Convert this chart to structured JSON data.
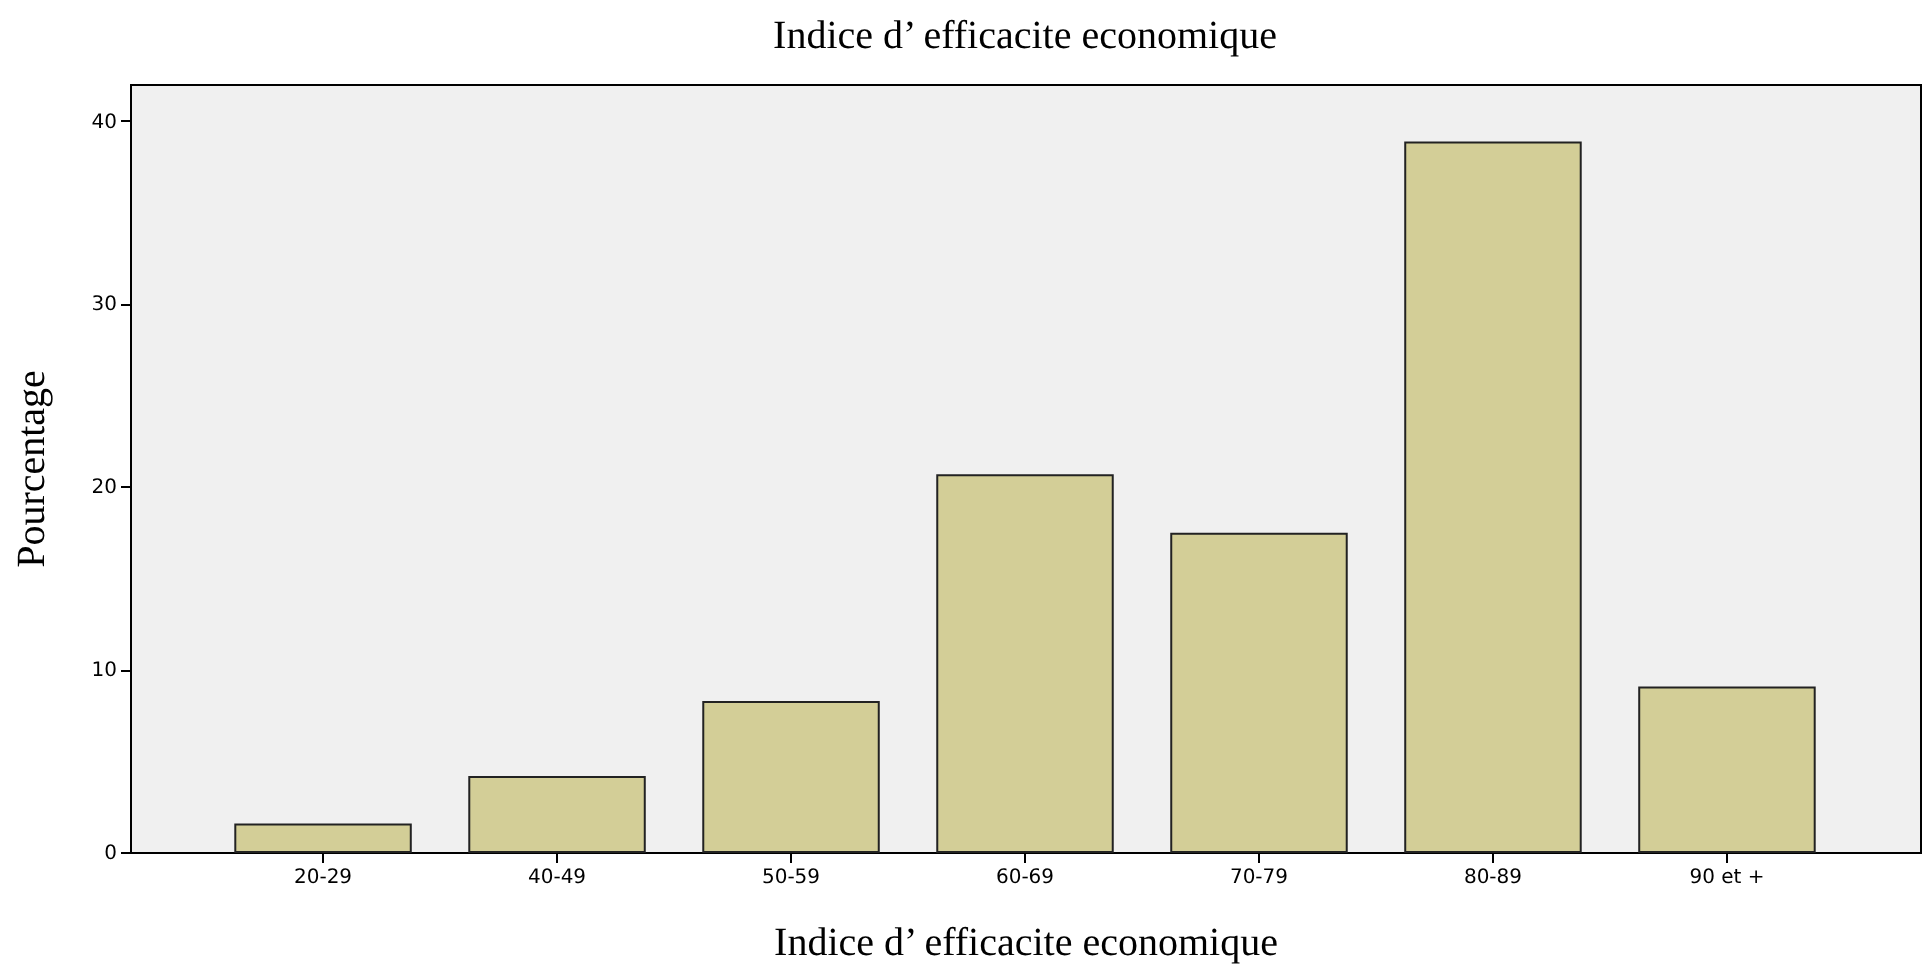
{
  "chart_data": {
    "type": "bar",
    "title": "Indice d’ efficacite economique",
    "xlabel": "Indice d’ efficacite economique",
    "ylabel": "Pourcentage",
    "categories": [
      "20-29",
      "40-49",
      "50-59",
      "60-69",
      "70-79",
      "80-89",
      "90 et +"
    ],
    "values": [
      1.5,
      4.1,
      8.2,
      20.6,
      17.4,
      38.8,
      9.0
    ],
    "color": "#d3ce97",
    "ylim": [
      0,
      42
    ],
    "yticks": [
      0,
      10,
      20,
      30,
      40
    ],
    "grid": false
  }
}
